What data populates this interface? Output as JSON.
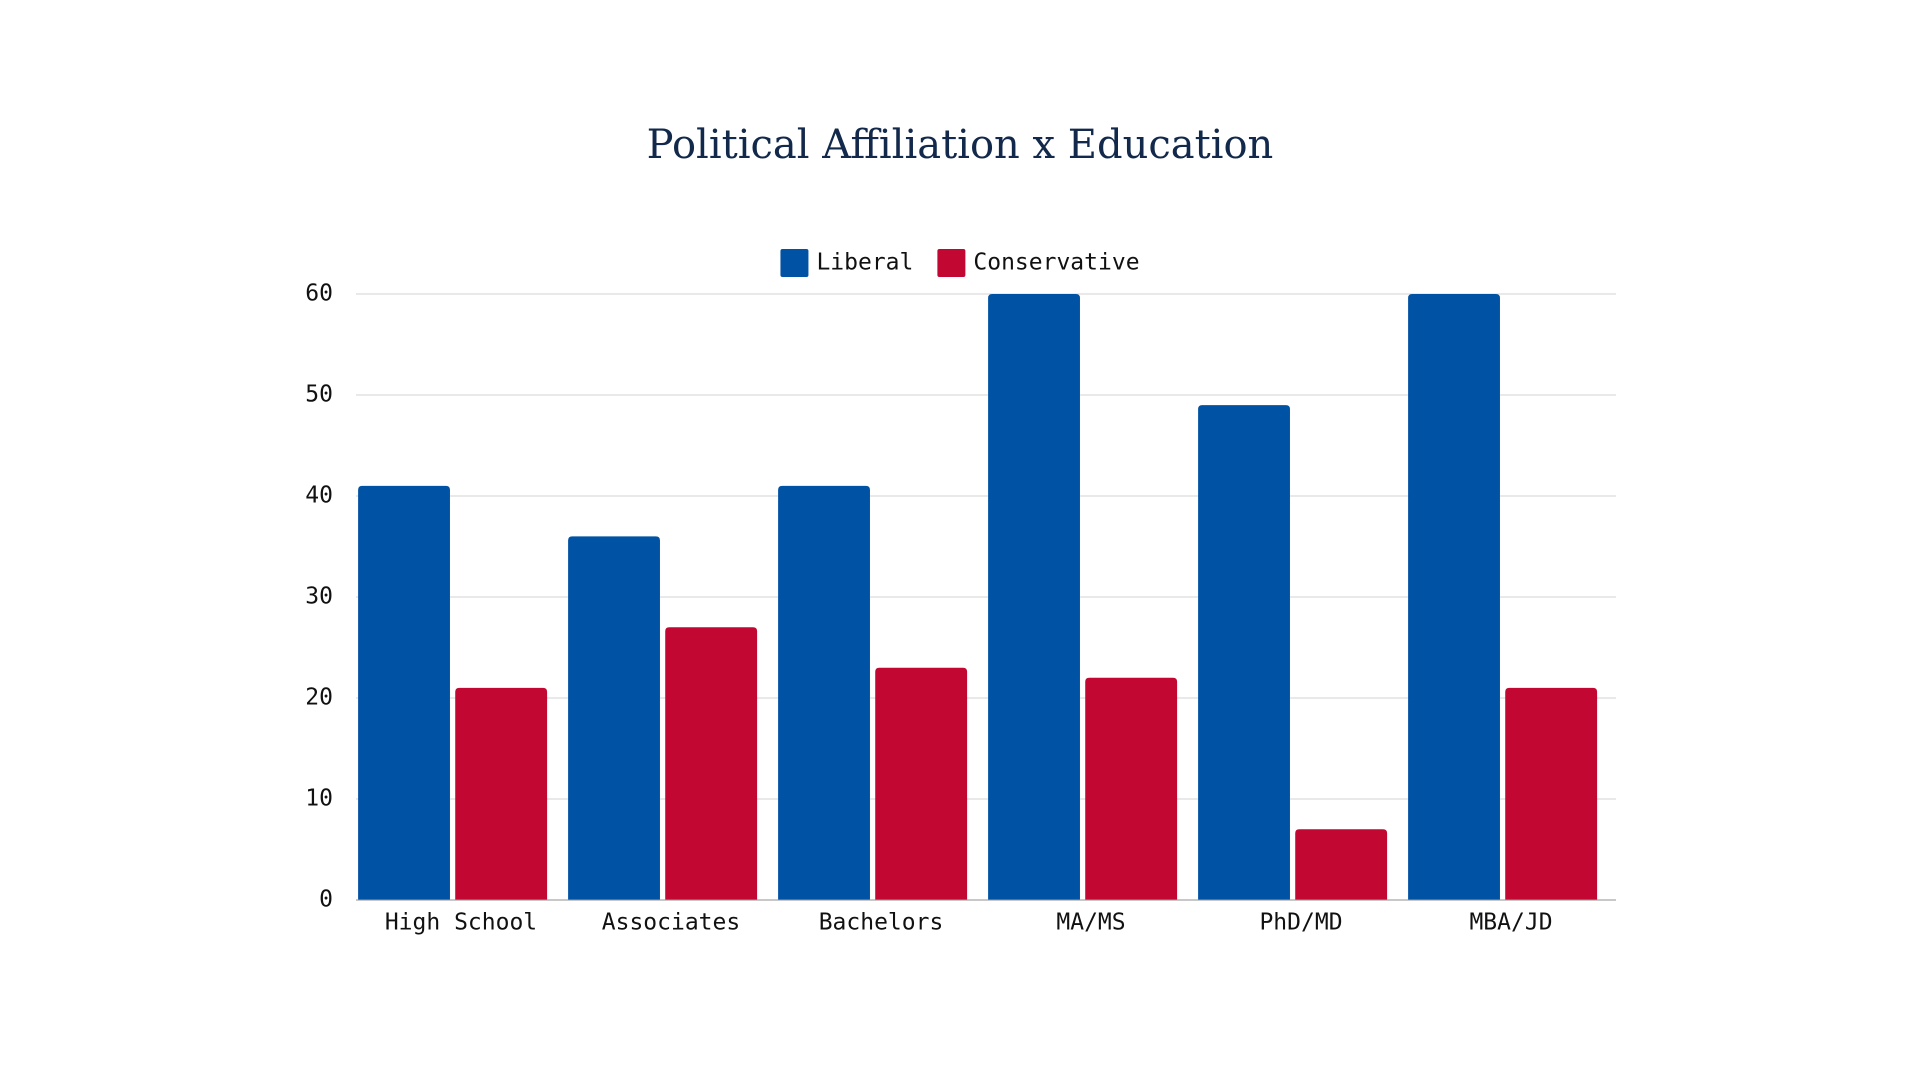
{
  "chart_data": {
    "type": "bar",
    "title": "Political Affiliation x Education",
    "categories": [
      "High School",
      "Associates",
      "Bachelors",
      "MA/MS",
      "PhD/MD",
      "MBA/JD"
    ],
    "series": [
      {
        "name": "Liberal",
        "color": "#0053a4",
        "values": [
          41,
          36,
          41,
          60,
          49,
          60
        ]
      },
      {
        "name": "Conservative",
        "color": "#c30733",
        "values": [
          21,
          27,
          23,
          22,
          7,
          21
        ]
      }
    ],
    "ylim": [
      0,
      60
    ],
    "yticks": [
      0,
      10,
      20,
      30,
      40,
      50,
      60
    ],
    "grid": true,
    "legend": "top"
  }
}
